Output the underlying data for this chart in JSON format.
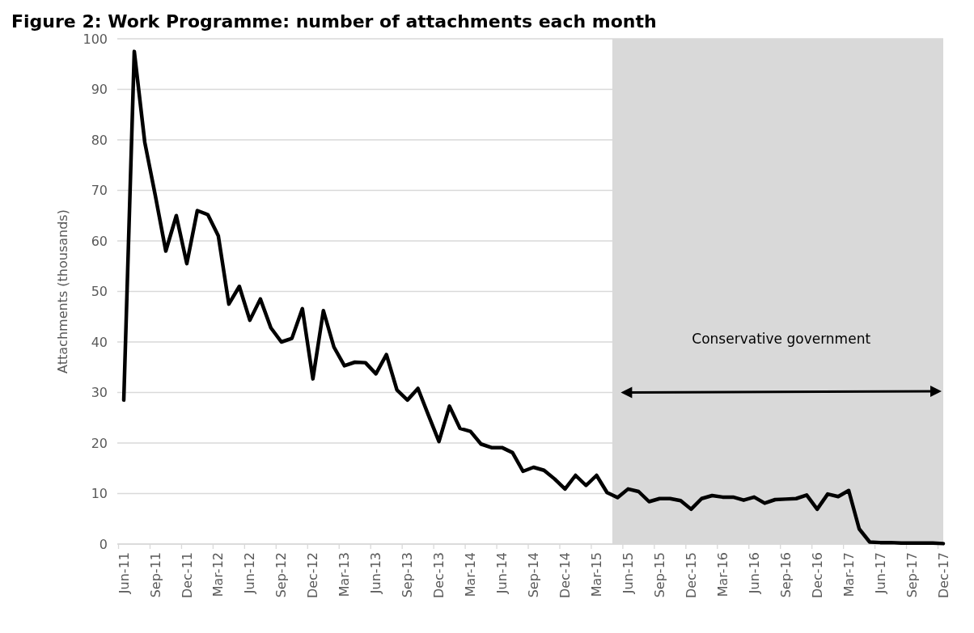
{
  "chart_data": {
    "type": "line",
    "title": "Figure 2: Work Programme: number of attachments each month",
    "ylabel": "Attachments (thousands)",
    "categories": [
      "Jun-11",
      null,
      null,
      "Sep-11",
      null,
      null,
      "Dec-11",
      null,
      null,
      "Mar-12",
      null,
      null,
      "Jun-12",
      null,
      null,
      "Sep-12",
      null,
      null,
      "Dec-12",
      null,
      null,
      "Mar-13",
      null,
      null,
      "Jun-13",
      null,
      null,
      "Sep-13",
      null,
      null,
      "Dec-13",
      null,
      null,
      "Mar-14",
      null,
      null,
      "Jun-14",
      null,
      null,
      "Sep-14",
      null,
      null,
      "Dec-14",
      null,
      null,
      "Mar-15",
      null,
      null,
      "Jun-15",
      null,
      null,
      "Sep-15",
      null,
      null,
      "Dec-15",
      null,
      null,
      "Mar-16",
      null,
      null,
      "Jun-16",
      null,
      null,
      "Sep-16",
      null,
      null,
      "Dec-16",
      null,
      null,
      "Mar-17",
      null,
      null,
      "Jun-17",
      null,
      null,
      "Sep-17",
      null,
      null,
      "Dec-17"
    ],
    "series": [
      {
        "color": "#000000",
        "values": [
          28.5,
          97.5,
          79.5,
          69,
          58,
          65,
          55.5,
          66,
          65.2,
          61,
          47.5,
          51,
          44.3,
          48.5,
          42.8,
          40,
          40.7,
          46.6,
          32.7,
          46.2,
          39,
          35.3,
          36,
          35.9,
          33.7,
          37.5,
          30.5,
          28.5,
          30.8,
          25.5,
          20.3,
          27.3,
          22.9,
          22.3,
          19.8,
          19.1,
          19.1,
          18.1,
          14.4,
          15.2,
          14.6,
          12.9,
          10.9,
          13.6,
          11.6,
          13.6,
          10.2,
          9.2,
          10.9,
          10.4,
          8.4,
          9.0,
          9.0,
          8.6,
          6.9,
          9.0,
          9.6,
          9.3,
          9.3,
          8.7,
          9.3,
          8.1,
          8.8,
          8.9,
          9.0,
          9.7,
          6.9,
          9.9,
          9.4,
          10.6,
          3.0,
          0.4,
          0.3,
          0.3,
          0.2,
          0.2,
          0.2,
          0.2,
          0.1
        ]
      }
    ],
    "ylim": [
      0,
      100
    ],
    "yticks": [
      0,
      10,
      20,
      30,
      40,
      50,
      60,
      70,
      80,
      90,
      100
    ],
    "grid": "y",
    "marker": "none",
    "line_style": "solid",
    "annotations": [
      "Conservative government"
    ]
  }
}
